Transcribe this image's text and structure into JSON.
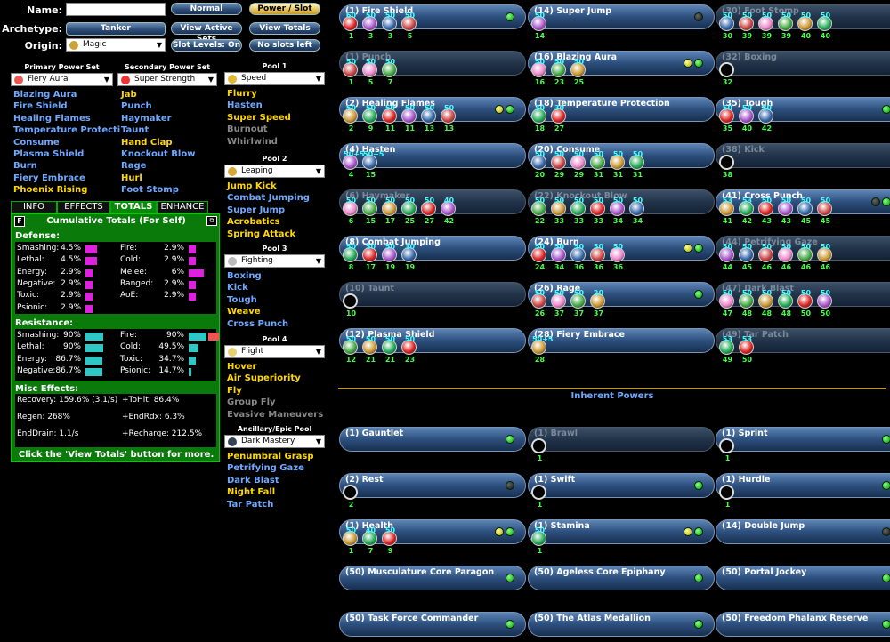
{
  "header": {
    "name_label": "Name:",
    "name_value": "",
    "archetype_label": "Archetype:",
    "archetype": "Tanker",
    "origin_label": "Origin:",
    "origin": "Magic",
    "buttons": [
      "Normal",
      "Power / Slot",
      "View Active Sets",
      "View Totals",
      "Slot Levels: On",
      "No slots left"
    ]
  },
  "primary": {
    "head": "Primary Power Set",
    "set": "Fiery Aura",
    "powers": [
      "Blazing Aura",
      "Fire Shield",
      "Healing Flames",
      "Temperature Protecti",
      "Consume",
      "Plasma Shield",
      "Burn",
      "Fiery Embrace",
      "Phoenix Rising"
    ],
    "colors": [
      "blue",
      "blue",
      "blue",
      "blue",
      "blue",
      "blue",
      "blue",
      "blue",
      "yel"
    ]
  },
  "secondary": {
    "head": "Secondary Power Set",
    "set": "Super Strength",
    "powers": [
      "Jab",
      "Punch",
      "Haymaker",
      "Taunt",
      "Hand Clap",
      "Knockout Blow",
      "Rage",
      "Hurl",
      "Foot Stomp"
    ],
    "colors": [
      "yel",
      "blue",
      "blue",
      "blue",
      "yel",
      "blue",
      "blue",
      "yel",
      "blue"
    ]
  },
  "pools": [
    {
      "head": "Pool 1",
      "set": "Speed",
      "powers": [
        "Flurry",
        "Hasten",
        "Super Speed",
        "Burnout",
        "Whirlwind"
      ],
      "colors": [
        "yel",
        "blue",
        "yel",
        "gray",
        "gray"
      ]
    },
    {
      "head": "Pool 2",
      "set": "Leaping",
      "powers": [
        "Jump Kick",
        "Combat Jumping",
        "Super Jump",
        "Acrobatics",
        "Spring Attack"
      ],
      "colors": [
        "yel",
        "blue",
        "blue",
        "yel",
        "yel"
      ]
    },
    {
      "head": "Pool 3",
      "set": "Fighting",
      "powers": [
        "Boxing",
        "Kick",
        "Tough",
        "Weave",
        "Cross Punch"
      ],
      "colors": [
        "blue",
        "blue",
        "blue",
        "yel",
        "blue"
      ]
    },
    {
      "head": "Pool 4",
      "set": "Flight",
      "powers": [
        "Hover",
        "Air Superiority",
        "Fly",
        "Group Fly",
        "Evasive Maneuvers"
      ],
      "colors": [
        "yel",
        "yel",
        "yel",
        "gray",
        "gray"
      ]
    },
    {
      "head": "Ancillary/Epic Pool",
      "set": "Dark Mastery",
      "powers": [
        "Penumbral Grasp",
        "Petrifying Gaze",
        "Dark Blast",
        "Night Fall",
        "Tar Patch"
      ],
      "colors": [
        "yel",
        "blue",
        "blue",
        "yel",
        "blue"
      ]
    }
  ],
  "tabs": [
    "INFO",
    "EFFECTS",
    "TOTALS",
    "ENHANCE"
  ],
  "totals": {
    "f": "F",
    "title": "Cumulative Totals (For Self)",
    "defense_head": "Defense:",
    "resistance_head": "Resistance:",
    "misc_head": "Misc Effects:",
    "footer": "Click the 'View Totals' button for more.",
    "defense_left": [
      {
        "k": "Smashing:",
        "v": "4.5%",
        "p": 0.45
      },
      {
        "k": "Lethal:",
        "v": "4.5%",
        "p": 0.45
      },
      {
        "k": "Energy:",
        "v": "2.9%",
        "p": 0.29
      },
      {
        "k": "Negative:",
        "v": "2.9%",
        "p": 0.29
      },
      {
        "k": "Toxic:",
        "v": "2.9%",
        "p": 0.29
      },
      {
        "k": "Psionic:",
        "v": "2.9%",
        "p": 0.29
      }
    ],
    "defense_right": [
      {
        "k": "Fire:",
        "v": "2.9%",
        "p": 0.29
      },
      {
        "k": "Cold:",
        "v": "2.9%",
        "p": 0.29
      },
      {
        "k": "Melee:",
        "v": "6%",
        "p": 0.6
      },
      {
        "k": "Ranged:",
        "v": "2.9%",
        "p": 0.29
      },
      {
        "k": "AoE:",
        "v": "2.9%",
        "p": 0.29
      }
    ],
    "res_left": [
      {
        "k": "Smashing:",
        "v": "90%",
        "p": 0.9
      },
      {
        "k": "Lethal:",
        "v": "90%",
        "p": 0.9
      },
      {
        "k": "Energy:",
        "v": "86.7%",
        "p": 0.867
      },
      {
        "k": "Negative:",
        "v": "86.7%",
        "p": 0.867
      }
    ],
    "res_right": [
      {
        "k": "Fire:",
        "v": "90%",
        "p": 0.9
      },
      {
        "k": "Cold:",
        "v": "49.5%",
        "p": 0.495
      },
      {
        "k": "Toxic:",
        "v": "34.7%",
        "p": 0.347
      },
      {
        "k": "Psionic:",
        "v": "14.7%",
        "p": 0.147
      }
    ],
    "misc": [
      [
        "Recovery: 159.6% (3.1/s)",
        "+ToHit: 86.4%"
      ],
      [
        "Regen: 268%",
        "+EndRdx: 6.3%"
      ],
      [
        "EndDrain: 1.1/s",
        "+Recharge: 212.5%"
      ]
    ]
  },
  "inherent_head": "Inherent Powers",
  "powers": [
    {
      "t": "(1) Fire Shield",
      "d": false,
      "led": "g",
      "s": [
        [
          "60",
          "1"
        ],
        [
          "50",
          "3"
        ],
        [
          "50",
          "3"
        ],
        [
          "50",
          "5"
        ]
      ]
    },
    {
      "t": "(14) Super Jump",
      "d": false,
      "led": "k",
      "s": [
        [
          "50",
          "14"
        ]
      ]
    },
    {
      "t": "(30) Foot Stomp",
      "d": true,
      "led": "",
      "s": [
        [
          "50",
          "30"
        ],
        [
          "50",
          "39"
        ],
        [
          "50",
          "39"
        ],
        [
          "50",
          "39"
        ],
        [
          "50",
          "40"
        ],
        [
          "50",
          "40"
        ]
      ]
    },
    {
      "t": "(1) Punch",
      "d": true,
      "led": "",
      "s": [
        [
          "50",
          "1"
        ],
        [
          "50",
          "5"
        ],
        [
          "50",
          "7"
        ]
      ]
    },
    {
      "t": "(16) Blazing Aura",
      "d": false,
      "led": "yg",
      "s": [
        [
          "50",
          "16"
        ],
        [
          "50",
          "23"
        ],
        [
          "50",
          "25"
        ]
      ]
    },
    {
      "t": "(32) Boxing",
      "d": true,
      "led": "",
      "s": [
        [
          "",
          "32"
        ]
      ]
    },
    {
      "t": "(2) Healing Flames",
      "d": false,
      "led": "yg",
      "s": [
        [
          "50",
          "2"
        ],
        [
          "50",
          "9"
        ],
        [
          "50",
          "11"
        ],
        [
          "50",
          "11"
        ],
        [
          "50",
          "13"
        ],
        [
          "50",
          "13"
        ]
      ]
    },
    {
      "t": "(18) Temperature Protection",
      "d": false,
      "led": "",
      "s": [
        [
          "30",
          "18"
        ],
        [
          "30",
          "27"
        ]
      ]
    },
    {
      "t": "(35) Tough",
      "d": false,
      "led": "g",
      "s": [
        [
          "50",
          "35"
        ],
        [
          "50",
          "40"
        ],
        [
          "50",
          "42"
        ]
      ]
    },
    {
      "t": "(4) Hasten",
      "d": false,
      "led": "",
      "s": [
        [
          "50+5",
          "4"
        ],
        [
          "50+5",
          "15"
        ]
      ]
    },
    {
      "t": "(20) Consume",
      "d": false,
      "led": "",
      "s": [
        [
          "50",
          "20"
        ],
        [
          "50",
          "29"
        ],
        [
          "50",
          "29"
        ],
        [
          "50",
          "31"
        ],
        [
          "50",
          "31"
        ],
        [
          "50",
          "31"
        ]
      ]
    },
    {
      "t": "(38) Kick",
      "d": true,
      "led": "",
      "s": [
        [
          "",
          "38"
        ]
      ]
    },
    {
      "t": "(6) Haymaker",
      "d": true,
      "led": "",
      "s": [
        [
          "50",
          "6"
        ],
        [
          "50",
          "15"
        ],
        [
          "50",
          "17"
        ],
        [
          "50",
          "25"
        ],
        [
          "50",
          "27"
        ],
        [
          "40",
          "42"
        ]
      ]
    },
    {
      "t": "(22) Knockout Blow",
      "d": true,
      "led": "",
      "s": [
        [
          "50",
          "22"
        ],
        [
          "50",
          "33"
        ],
        [
          "50",
          "33"
        ],
        [
          "50",
          "33"
        ],
        [
          "50",
          "34"
        ],
        [
          "50",
          "34"
        ]
      ]
    },
    {
      "t": "(41) Cross Punch",
      "d": false,
      "led": "kg",
      "s": [
        [
          "53",
          "41"
        ],
        [
          "53",
          "42"
        ],
        [
          "50",
          "43"
        ],
        [
          "50",
          "43"
        ],
        [
          "50",
          "45"
        ],
        [
          "50",
          "45"
        ]
      ]
    },
    {
      "t": "(8) Combat Jumping",
      "d": false,
      "led": "",
      "s": [
        [
          "50",
          "8"
        ],
        [
          "50",
          "17"
        ],
        [
          "50",
          "19"
        ],
        [
          "30",
          "19"
        ]
      ]
    },
    {
      "t": "(24) Burn",
      "d": false,
      "led": "yg",
      "s": [
        [
          "50",
          "24"
        ],
        [
          "50",
          "34"
        ],
        [
          "50",
          "36"
        ],
        [
          "50",
          "36"
        ],
        [
          "50",
          "36"
        ]
      ]
    },
    {
      "t": "(44) Petrifying Gaze",
      "d": true,
      "led": "",
      "s": [
        [
          "50",
          "44"
        ],
        [
          "50",
          "45"
        ],
        [
          "50",
          "46"
        ],
        [
          "50",
          "46"
        ],
        [
          "50",
          "46"
        ],
        [
          "50",
          "46"
        ]
      ]
    },
    {
      "t": "(10) Taunt",
      "d": true,
      "led": "",
      "s": [
        [
          "",
          "10"
        ]
      ]
    },
    {
      "t": "(26) Rage",
      "d": false,
      "led": "g",
      "s": [
        [
          "50",
          "26"
        ],
        [
          "50",
          "37"
        ],
        [
          "50",
          "37"
        ],
        [
          "20",
          "37"
        ]
      ]
    },
    {
      "t": "(47) Dark Blast",
      "d": true,
      "led": "",
      "s": [
        [
          "50",
          "47"
        ],
        [
          "50",
          "48"
        ],
        [
          "50",
          "48"
        ],
        [
          "50",
          "48"
        ],
        [
          "50",
          "50"
        ],
        [
          "50",
          "50"
        ]
      ]
    },
    {
      "t": "(12) Plasma Shield",
      "d": false,
      "led": "",
      "s": [
        [
          "50",
          "12"
        ],
        [
          "50",
          "21"
        ],
        [
          "50",
          "21"
        ],
        [
          "50",
          "23"
        ]
      ]
    },
    {
      "t": "(28) Fiery Embrace",
      "d": false,
      "led": "",
      "s": [
        [
          "50+5",
          "28"
        ]
      ]
    },
    {
      "t": "(49) Tar Patch",
      "d": true,
      "led": "",
      "s": [
        [
          "53",
          "49"
        ],
        [
          "53",
          "50"
        ]
      ]
    }
  ],
  "inherent": [
    {
      "t": "(1) Gauntlet",
      "d": false,
      "led": "g",
      "s": []
    },
    {
      "t": "(1) Brawl",
      "d": true,
      "led": "",
      "s": [
        [
          "",
          "1"
        ]
      ]
    },
    {
      "t": "(1) Sprint",
      "d": false,
      "led": "g",
      "s": [
        [
          "",
          "1"
        ]
      ]
    },
    {
      "t": "(2) Rest",
      "d": false,
      "led": "k",
      "s": [
        [
          "",
          "2"
        ]
      ]
    },
    {
      "t": "(1) Swift",
      "d": false,
      "led": "g",
      "s": [
        [
          "",
          "1"
        ]
      ]
    },
    {
      "t": "(1) Hurdle",
      "d": false,
      "led": "g",
      "s": [
        [
          "",
          "1"
        ]
      ]
    },
    {
      "t": "(1) Health",
      "d": false,
      "led": "yg",
      "s": [
        [
          "50",
          "1"
        ],
        [
          "40",
          "7"
        ],
        [
          "50",
          "9"
        ]
      ]
    },
    {
      "t": "(1) Stamina",
      "d": false,
      "led": "yg",
      "s": [
        [
          "50",
          "1"
        ]
      ]
    },
    {
      "t": "(14) Double Jump",
      "d": false,
      "led": "k",
      "s": []
    },
    {
      "t": "(50) Musculature Core Paragon",
      "d": false,
      "led": "g",
      "s": []
    },
    {
      "t": "(50) Ageless Core Epiphany",
      "d": false,
      "led": "g",
      "s": []
    },
    {
      "t": "(50) Portal Jockey",
      "d": false,
      "led": "g",
      "s": []
    },
    {
      "t": "(50) Task Force Commander",
      "d": false,
      "led": "g",
      "s": []
    },
    {
      "t": "(50) The Atlas Medallion",
      "d": false,
      "led": "g",
      "s": []
    },
    {
      "t": "(50) Freedom Phalanx Reserve",
      "d": false,
      "led": "g",
      "s": []
    }
  ]
}
